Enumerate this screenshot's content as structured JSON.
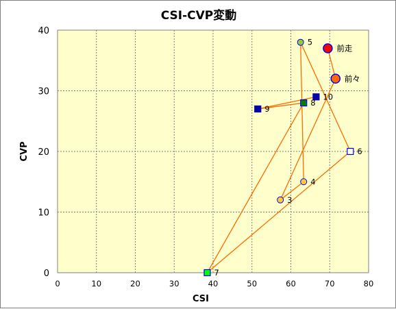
{
  "chart_data": {
    "type": "scatter",
    "title": "CSI-CVP変動",
    "xlabel": "CSI",
    "ylabel": "CVP",
    "xlim": [
      0,
      80
    ],
    "ylim": [
      0,
      40
    ],
    "x_ticks": [
      "0",
      "10",
      "20",
      "30",
      "40",
      "50",
      "60",
      "70",
      "80"
    ],
    "y_ticks": [
      "0",
      "10",
      "20",
      "30",
      "40"
    ],
    "grid": true,
    "plot_background": "#ffffcc",
    "line_color": "#ff6a00",
    "points": [
      {
        "label": "前走",
        "x": 69.5,
        "y": 37,
        "shape": "circle",
        "fill": "#ff0000",
        "stroke": "#0000ff",
        "size": "large"
      },
      {
        "label": "前々",
        "x": 71.5,
        "y": 32,
        "shape": "circle",
        "fill": "#ff6a00",
        "stroke": "#0000ff",
        "size": "large"
      },
      {
        "label": "3",
        "x": 57.3,
        "y": 12,
        "shape": "circle",
        "fill": "#ffcc33",
        "stroke": "#0000ff",
        "size": "small"
      },
      {
        "label": "4",
        "x": 63.3,
        "y": 15,
        "shape": "circle",
        "fill": "#ffcc33",
        "stroke": "#0000ff",
        "size": "small"
      },
      {
        "label": "5",
        "x": 62.5,
        "y": 38,
        "shape": "circle",
        "fill": "#99cc33",
        "stroke": "#0000ff",
        "size": "small"
      },
      {
        "label": "6",
        "x": 75.3,
        "y": 20,
        "shape": "square",
        "fill": "#ffffff",
        "stroke": "#0000ff",
        "size": "small"
      },
      {
        "label": "7",
        "x": 38.5,
        "y": 0,
        "shape": "square",
        "fill": "#00ff00",
        "stroke": "#0000ff",
        "size": "small"
      },
      {
        "label": "8",
        "x": 63.3,
        "y": 28,
        "shape": "square",
        "fill": "#008000",
        "stroke": "#0000ff",
        "size": "small"
      },
      {
        "label": "9",
        "x": 51.5,
        "y": 27,
        "shape": "square",
        "fill": "#0000aa",
        "stroke": "#0000aa",
        "size": "small"
      },
      {
        "label": "10",
        "x": 66.5,
        "y": 29,
        "shape": "square",
        "fill": "#0000aa",
        "stroke": "#0000aa",
        "size": "small"
      }
    ],
    "path_order": [
      "10",
      "9",
      "8",
      "7",
      "6",
      "5",
      "4",
      "3",
      "前々",
      "前走"
    ]
  }
}
